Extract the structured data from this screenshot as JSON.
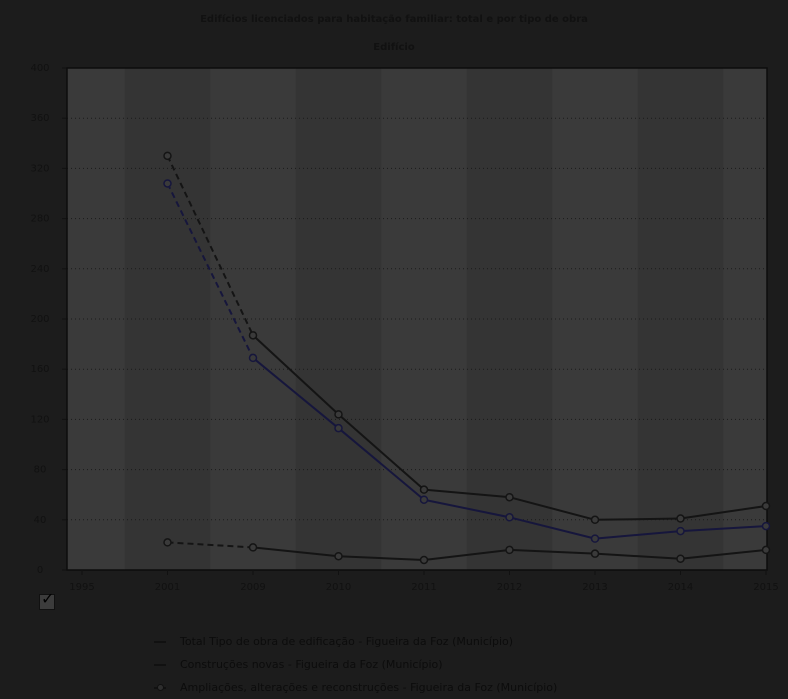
{
  "chart_data": {
    "type": "line",
    "title": "Edifícios licenciados para habitação familiar: total e por tipo de obra",
    "subtitle": "Edifício",
    "x": [
      "1995",
      "2001",
      "2009",
      "2010",
      "2011",
      "2012",
      "2013",
      "2014",
      "2015"
    ],
    "ylim": [
      0,
      400
    ],
    "yticks": [
      0,
      40,
      80,
      120,
      160,
      200,
      240,
      280,
      320,
      360,
      400
    ],
    "grid": true,
    "series": [
      {
        "name": "Total Tipo de obra de edificação - Figueira da Foz (Município)",
        "values": [
          null,
          330,
          187,
          124,
          64,
          58,
          40,
          41,
          51
        ],
        "color": "#141414"
      },
      {
        "name": "Construções novas - Figueira da Foz (Município)",
        "values": [
          null,
          308,
          169,
          113,
          56,
          42,
          25,
          31,
          35
        ],
        "color": "#16163c"
      },
      {
        "name": "Ampliações, alterações e reconstruções - Figueira da Foz (Município)",
        "values": [
          null,
          22,
          18,
          11,
          8,
          16,
          13,
          9,
          16
        ],
        "color": "#141414"
      }
    ],
    "legend_position": "bottom"
  },
  "checkbox": {
    "checked_symbol": "✓"
  }
}
